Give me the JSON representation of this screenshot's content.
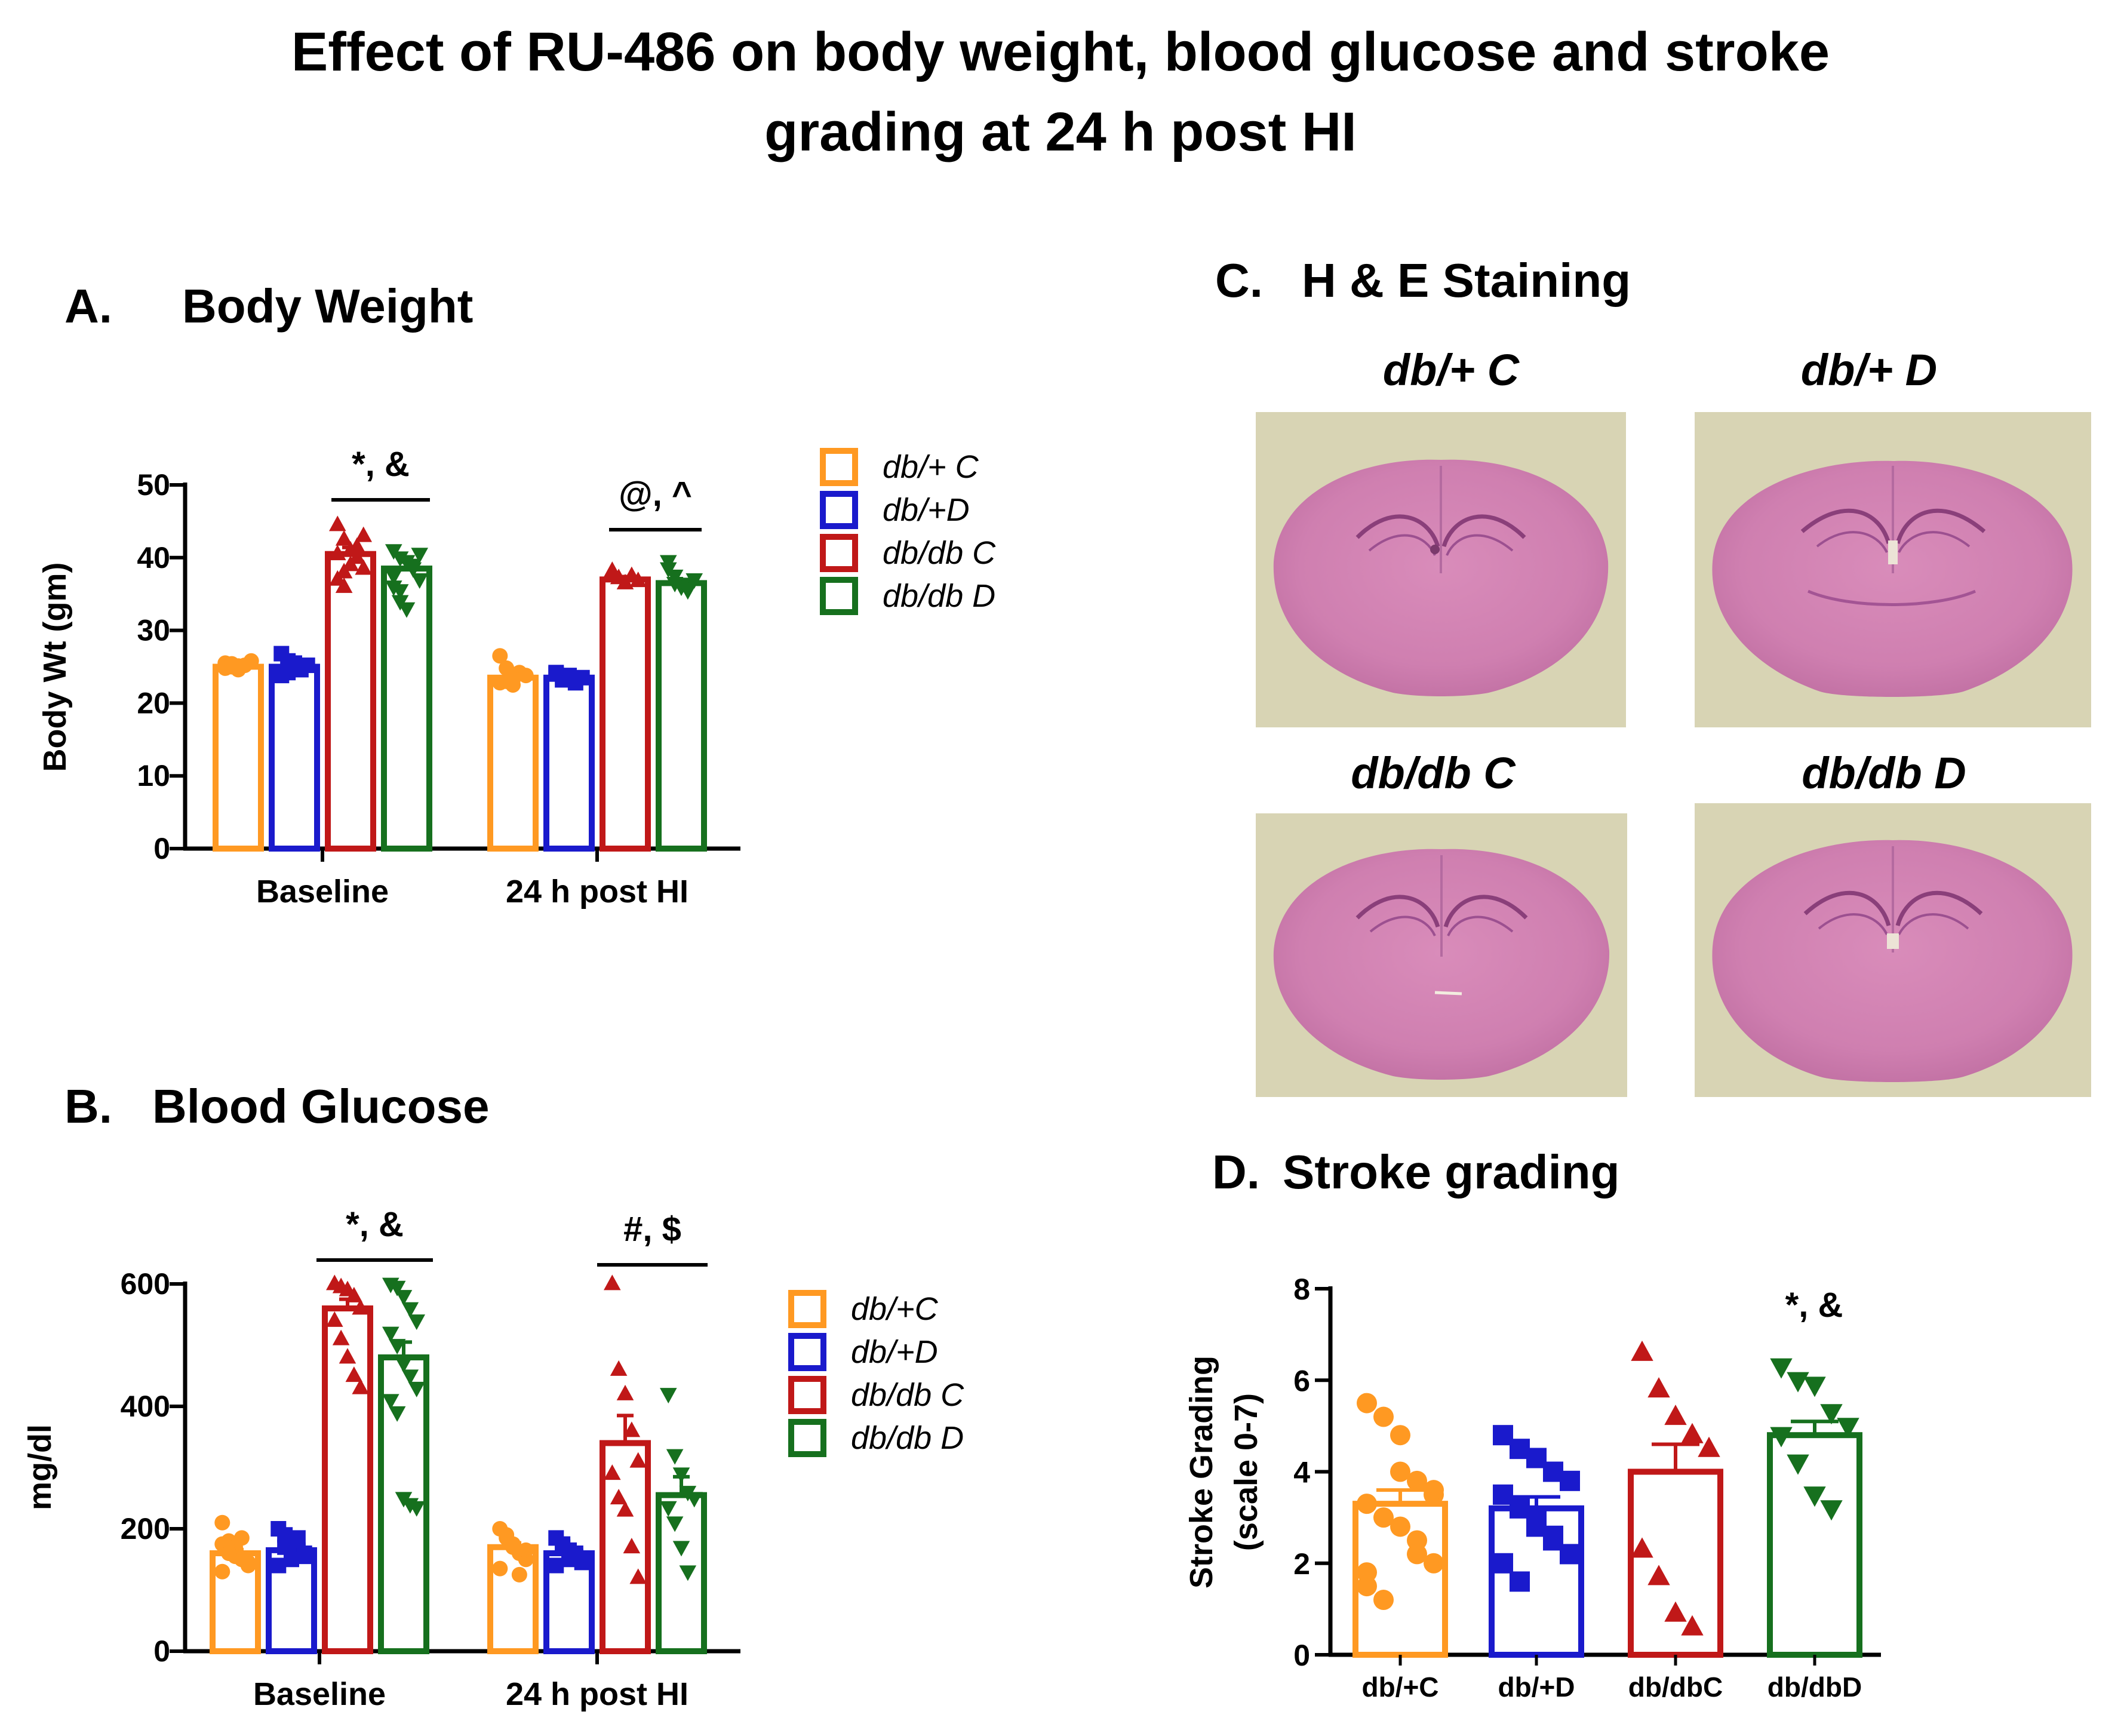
{
  "title_line1": "Effect of RU-486 on body weight, blood glucose and stroke",
  "title_line2": "grading at 24 h post HI",
  "colors": {
    "db+C": "#ff9922",
    "db+D": "#1a1acc",
    "dbdbC": "#c01818",
    "dbdbD": "#16701e"
  },
  "chart_data": [
    {
      "panel_label": "A.",
      "title": "Body Weight",
      "type": "bar",
      "ylabel": "Body Wt (gm)",
      "ylim": [
        0,
        50
      ],
      "yticks": [
        0,
        10,
        20,
        30,
        40,
        50
      ],
      "categories": [
        "Baseline",
        "24 h post HI"
      ],
      "legend": [
        "db/+ C",
        "db/+D",
        "db/db C",
        "db/db D"
      ],
      "series": [
        {
          "name": "db/+ C",
          "values": [
            25,
            23.5
          ],
          "sem": [
            0.3,
            0.5
          ],
          "marker": "circle",
          "points": [
            [
              25.5,
              25.0,
              24.6,
              25.2,
              25.8,
              24.8,
              25.4,
              25.1
            ],
            [
              26.5,
              23.0,
              22.5,
              24.2,
              23.8,
              22.8,
              24.8,
              23.2
            ]
          ]
        },
        {
          "name": "db/+D",
          "values": [
            25,
            23.5
          ],
          "sem": [
            0.4,
            0.4
          ],
          "marker": "square",
          "points": [
            [
              26.8,
              24.2,
              25.5,
              24.6,
              25.2,
              23.8,
              25.8,
              24.9
            ],
            [
              24.2,
              23.2,
              23.8,
              22.8,
              23.5,
              24.0
            ]
          ]
        },
        {
          "name": "db/db C",
          "values": [
            40.5,
            37
          ],
          "sem": [
            0.9,
            0.4
          ],
          "marker": "triangle",
          "points": [
            [
              44.5,
              42.5,
              41.0,
              40.0,
              38.5,
              37.0,
              36.0,
              39.0,
              41.5,
              43.0,
              40.5,
              38.0
            ],
            [
              38.2,
              37.2,
              36.5,
              37.5,
              36.8,
              37.6
            ]
          ]
        },
        {
          "name": "db/db D",
          "values": [
            38.5,
            36.5
          ],
          "sem": [
            0.9,
            0.5
          ],
          "marker": "triangle-down",
          "points": [
            [
              41.0,
              40.0,
              39.5,
              38.5,
              37.0,
              36.0,
              34.0,
              33.0,
              39.0,
              40.5,
              37.5,
              35.5
            ],
            [
              39.5,
              37.5,
              36.0,
              35.5,
              37.0,
              38.5,
              36.5
            ]
          ]
        }
      ],
      "annotations": [
        "*, &",
        "@, ^"
      ]
    },
    {
      "panel_label": "B.",
      "title": "Blood Glucose",
      "type": "bar",
      "ylabel": "mg/dl",
      "ylim": [
        0,
        600
      ],
      "yticks": [
        0,
        200,
        400,
        600
      ],
      "categories": [
        "Baseline",
        "24 h post HI"
      ],
      "legend": [
        "db/+C",
        "db/+D",
        "db/db C",
        "db/db D"
      ],
      "series": [
        {
          "name": "db/+C",
          "values": [
            160,
            170
          ],
          "sem": [
            6,
            7
          ],
          "marker": "circle",
          "points": [
            [
              210,
              180,
              170,
              150,
              140,
              130,
              165,
              155,
              185,
              145,
              175,
              160
            ],
            [
              200,
              185,
              175,
              160,
              150,
              135,
              190,
              170,
              125,
              165
            ]
          ]
        },
        {
          "name": "db/+D",
          "values": [
            165,
            160
          ],
          "sem": [
            6,
            6
          ],
          "marker": "square",
          "points": [
            [
              200,
              190,
              175,
              165,
              155,
              140,
              170,
              150,
              185,
              160
            ],
            [
              185,
              175,
              165,
              155,
              145,
              140,
              170,
              150,
              160
            ]
          ]
        },
        {
          "name": "db/db C",
          "values": [
            560,
            340
          ],
          "sem": [
            15,
            45
          ],
          "marker": "triangle",
          "points": [
            [
              600,
              595,
              590,
              580,
              560,
              540,
              510,
              480,
              450,
              430
            ],
            [
              600,
              460,
              420,
              360,
              310,
              290,
              250,
              230,
              170,
              120
            ]
          ]
        },
        {
          "name": "db/db D",
          "values": [
            480,
            255
          ],
          "sem": [
            25,
            30
          ],
          "marker": "triangle-down",
          "points": [
            [
              600,
              595,
              580,
              560,
              540,
              520,
              500,
              470,
              450,
              430,
              410,
              390,
              250,
              240,
              235
            ],
            [
              420,
              320,
              290,
              260,
              250,
              235,
              210,
              170,
              130
            ]
          ]
        }
      ],
      "annotations": [
        "*, &",
        "#, $"
      ]
    },
    {
      "panel_label": "D.",
      "title": "Stroke grading",
      "type": "bar",
      "ylabel_line1": "Stroke Grading",
      "ylabel_line2": "(scale 0-7)",
      "ylim": [
        0,
        8
      ],
      "yticks": [
        0,
        2,
        4,
        6,
        8
      ],
      "categories": [
        "db/+C",
        "db/+D",
        "db/dbC",
        "db/dbD"
      ],
      "series": [
        {
          "name": "db/+C",
          "value": 3.3,
          "sem": 0.3,
          "marker": "circle",
          "points": [
            5.5,
            5.2,
            4.8,
            3.8,
            3.5,
            3.3,
            3.0,
            2.8,
            2.5,
            2.0,
            1.5,
            1.2,
            4.0,
            2.2,
            3.6,
            1.8
          ]
        },
        {
          "name": "db/+D",
          "value": 3.2,
          "sem": 0.25,
          "marker": "square",
          "points": [
            4.8,
            4.5,
            4.3,
            4.0,
            3.8,
            3.5,
            3.2,
            2.8,
            2.5,
            2.2,
            2.0,
            1.6,
            3.0,
            2.6
          ]
        },
        {
          "name": "db/dbC",
          "value": 4.0,
          "sem": 0.6,
          "marker": "triangle",
          "points": [
            6.6,
            5.8,
            5.2,
            4.8,
            4.5,
            2.3,
            1.7,
            0.9,
            0.6
          ]
        },
        {
          "name": "db/dbD",
          "value": 4.8,
          "sem": 0.3,
          "marker": "triangle-down",
          "points": [
            6.3,
            6.0,
            5.9,
            5.3,
            5.0,
            4.8,
            4.2,
            3.5,
            3.2
          ]
        }
      ],
      "annotations": [
        "*, &"
      ]
    }
  ],
  "histology": {
    "panel_label": "C.",
    "title": "H & E Staining",
    "labels": [
      "db/+ C",
      "db/+ D",
      "db/db C",
      "db/db D"
    ]
  }
}
